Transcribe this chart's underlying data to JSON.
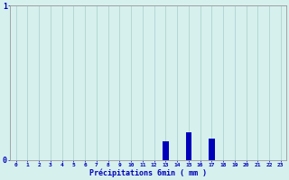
{
  "hours": [
    0,
    1,
    2,
    3,
    4,
    5,
    6,
    7,
    8,
    9,
    10,
    11,
    12,
    13,
    14,
    15,
    16,
    17,
    18,
    19,
    20,
    21,
    22,
    23
  ],
  "values": [
    0,
    0,
    0,
    0,
    0,
    0,
    0,
    0,
    0,
    0,
    0,
    0,
    0,
    0.12,
    0,
    0.18,
    0,
    0.14,
    0,
    0,
    0,
    0,
    0,
    0
  ],
  "bar_color": "#0000bb",
  "bg_color": "#d6f0ee",
  "grid_color": "#aed4ce",
  "axis_color": "#999999",
  "text_color": "#0000bb",
  "xlabel": "Précipitations 6min ( mm )",
  "ylim": [
    0,
    1
  ],
  "xlim": [
    -0.5,
    23.5
  ],
  "ytick_labels": [
    "0",
    "1"
  ],
  "ytick_positions": [
    0,
    1
  ]
}
